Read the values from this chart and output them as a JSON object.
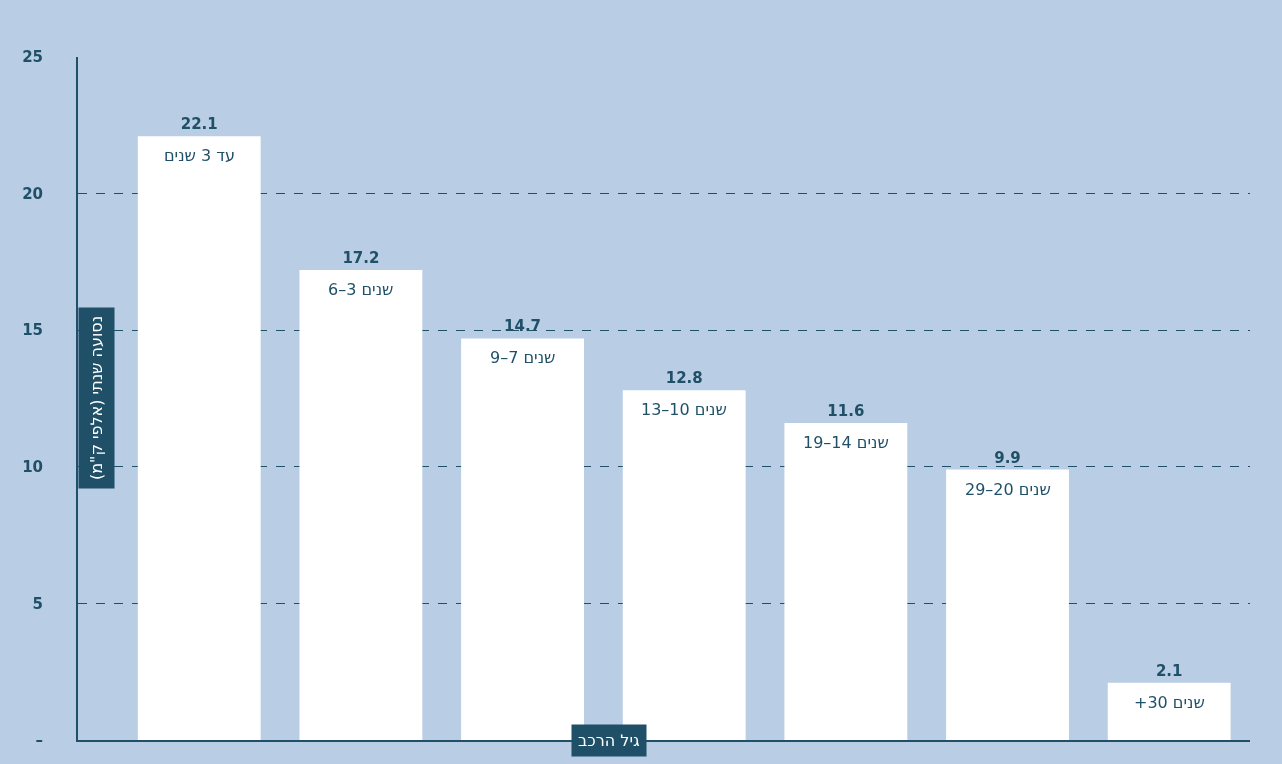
{
  "chart_data": {
    "type": "bar",
    "ylabel": "נסועה שנתי (אלפי ק\"מ)",
    "xlabel": "גיל הרכב",
    "categories": [
      "עד 3 שנים",
      "6–3 שנים",
      "9–7 שנים",
      "13–10 שנים",
      "19–14 שנים",
      "29–20 שנים",
      "+30 שנים"
    ],
    "values": [
      22.1,
      17.2,
      14.7,
      12.8,
      11.6,
      9.9,
      2.1
    ],
    "color": "#ffffff",
    "ylim": [
      0,
      25
    ],
    "yticks": [
      {
        "value": 0,
        "label": "–"
      },
      5,
      10,
      15,
      20,
      25
    ],
    "grid": "y",
    "data_labels": true,
    "tick_labels": "y"
  }
}
